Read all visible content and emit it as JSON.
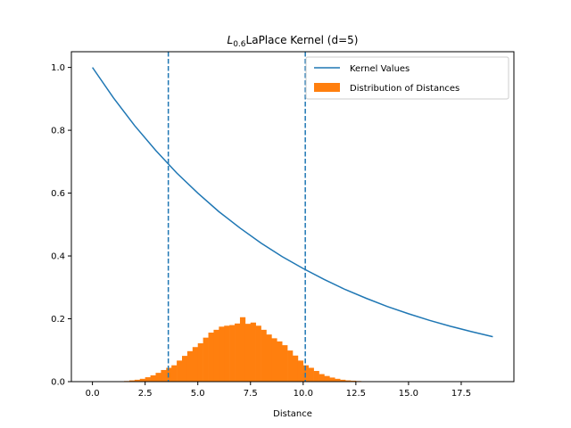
{
  "chart_data": {
    "type": "line+histogram",
    "title": {
      "prefix": "L",
      "subscript": "0.6",
      "rest": "LaPlace Kernel (d=5)"
    },
    "xlabel": "Distance",
    "ylabel": "",
    "xlim": [
      -1.0,
      20.0
    ],
    "ylim": [
      0.0,
      1.05
    ],
    "x_ticks": [
      0.0,
      2.5,
      5.0,
      7.5,
      10.0,
      12.5,
      15.0,
      17.5
    ],
    "x_tick_labels": [
      "0.0",
      "2.5",
      "5.0",
      "7.5",
      "10.0",
      "12.5",
      "15.0",
      "17.5"
    ],
    "y_ticks": [
      0.0,
      0.2,
      0.4,
      0.6,
      0.8,
      1.0
    ],
    "y_tick_labels": [
      "0.0",
      "0.2",
      "0.4",
      "0.6",
      "0.8",
      "1.0"
    ],
    "grid": false,
    "legend": {
      "placement": "top-right",
      "entries": [
        "Kernel Values",
        "Distribution of Distances"
      ]
    },
    "kernel_series": {
      "name": "Kernel Values",
      "color": "#1f77b4",
      "x": [
        0,
        1,
        2,
        3,
        4,
        5,
        6,
        7,
        8,
        9,
        10,
        11,
        12,
        13,
        14,
        15,
        16,
        17,
        18,
        19
      ],
      "y": [
        1.0,
        0.903,
        0.815,
        0.736,
        0.664,
        0.6,
        0.541,
        0.489,
        0.441,
        0.398,
        0.36,
        0.325,
        0.293,
        0.265,
        0.239,
        0.216,
        0.195,
        0.176,
        0.159,
        0.143
      ]
    },
    "histogram": {
      "name": "Distribution of Distances",
      "color": "#ff7f0e",
      "bin_edges": [
        1.5,
        1.75,
        2.0,
        2.25,
        2.5,
        2.75,
        3.0,
        3.25,
        3.5,
        3.75,
        4.0,
        4.25,
        4.5,
        4.75,
        5.0,
        5.25,
        5.5,
        5.75,
        6.0,
        6.25,
        6.5,
        6.75,
        7.0,
        7.25,
        7.5,
        7.75,
        8.0,
        8.25,
        8.5,
        8.75,
        9.0,
        9.25,
        9.5,
        9.75,
        10.0,
        10.25,
        10.5,
        10.75,
        11.0,
        11.25,
        11.5,
        11.75,
        12.0,
        12.25,
        12.5,
        12.75,
        13.0
      ],
      "heights": [
        0.002,
        0.004,
        0.006,
        0.009,
        0.014,
        0.02,
        0.028,
        0.037,
        0.044,
        0.052,
        0.067,
        0.082,
        0.097,
        0.11,
        0.122,
        0.14,
        0.156,
        0.165,
        0.175,
        0.178,
        0.18,
        0.185,
        0.205,
        0.184,
        0.188,
        0.178,
        0.165,
        0.15,
        0.138,
        0.128,
        0.116,
        0.099,
        0.083,
        0.067,
        0.052,
        0.044,
        0.034,
        0.024,
        0.018,
        0.013,
        0.009,
        0.006,
        0.004,
        0.003,
        0.002,
        0.001
      ]
    },
    "vlines": {
      "color": "#1f77b4",
      "style": "dashed",
      "x": [
        3.6,
        10.1
      ]
    }
  }
}
